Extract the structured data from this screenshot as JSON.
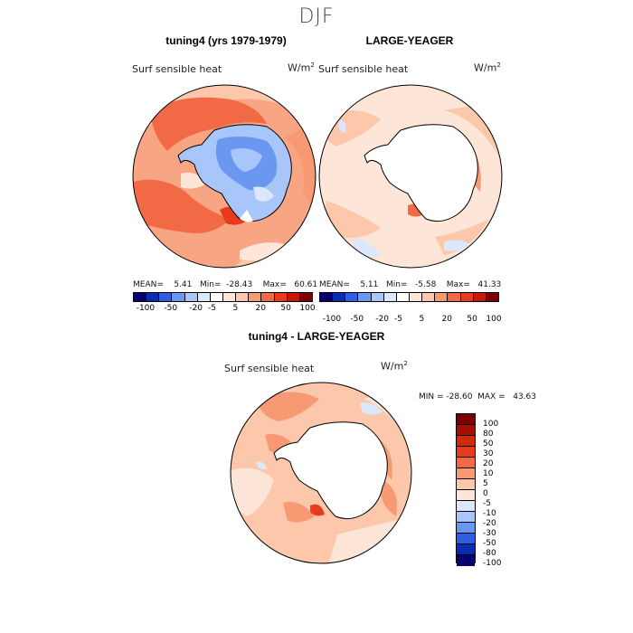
{
  "figure": {
    "season": "DJF",
    "variable": "Surf sensible heat",
    "units_base": "W/m",
    "units_exp": "2"
  },
  "palette": {
    "colors": [
      "#08006e",
      "#0a2cb0",
      "#2d5fe0",
      "#6a97f0",
      "#a8c6fa",
      "#dbe8fb",
      "#ffffff",
      "#fde6d7",
      "#fcc7ab",
      "#f79a74",
      "#f26a45",
      "#e63b1d",
      "#c41a06",
      "#7d0000"
    ]
  },
  "chart_data": [
    {
      "type": "heatmap",
      "projection": "south polar stereographic",
      "title": "tuning4 (yrs 1979-1979)",
      "variable": "Surf sensible heat",
      "units": "W/m2",
      "stats": {
        "mean": "5.41",
        "min": "-28.43",
        "max": "60.61"
      },
      "stats_text": "MEAN=    5.41   Min=  -28.43    Max=   60.61",
      "colorbar_levels": [
        -100,
        -80,
        -50,
        -30,
        -20,
        -10,
        -5,
        0,
        5,
        10,
        20,
        30,
        50,
        80,
        100
      ],
      "colorbar_tick_labels": [
        "-100",
        "-50",
        "-20",
        "-5",
        "5",
        "20",
        "50",
        "100"
      ]
    },
    {
      "type": "heatmap",
      "projection": "south polar stereographic",
      "title": "LARGE-YEAGER",
      "variable": "Surf sensible heat",
      "units": "W/m2",
      "stats": {
        "mean": "5.11",
        "min": "-5.58",
        "max": "41.33"
      },
      "stats_text": "MEAN=    5.11   Min=   -5.58    Max=   41.33",
      "colorbar_levels": [
        -100,
        -80,
        -50,
        -30,
        -20,
        -10,
        -5,
        0,
        5,
        10,
        20,
        30,
        50,
        80,
        100
      ],
      "colorbar_tick_labels": [
        "-100",
        "-50",
        "-20",
        "-5",
        "5",
        "20",
        "50",
        "100"
      ]
    },
    {
      "type": "heatmap",
      "projection": "south polar stereographic",
      "title": "tuning4 - LARGE-YEAGER",
      "variable": "Surf sensible heat",
      "units": "W/m2",
      "stats": {
        "min": "-28.60",
        "max": "43.63"
      },
      "stats_text": "MIN = -28.60  MAX =   43.63",
      "colorbar_levels": [
        100,
        80,
        50,
        30,
        20,
        10,
        5,
        0,
        -5,
        -10,
        -20,
        -30,
        -50,
        -80,
        -100
      ],
      "colorbar_tick_labels": [
        "100",
        "80",
        "50",
        "30",
        "20",
        "10",
        "5",
        "0",
        "-5",
        "-10",
        "-20",
        "-30",
        "-50",
        "-80",
        "-100"
      ]
    }
  ]
}
